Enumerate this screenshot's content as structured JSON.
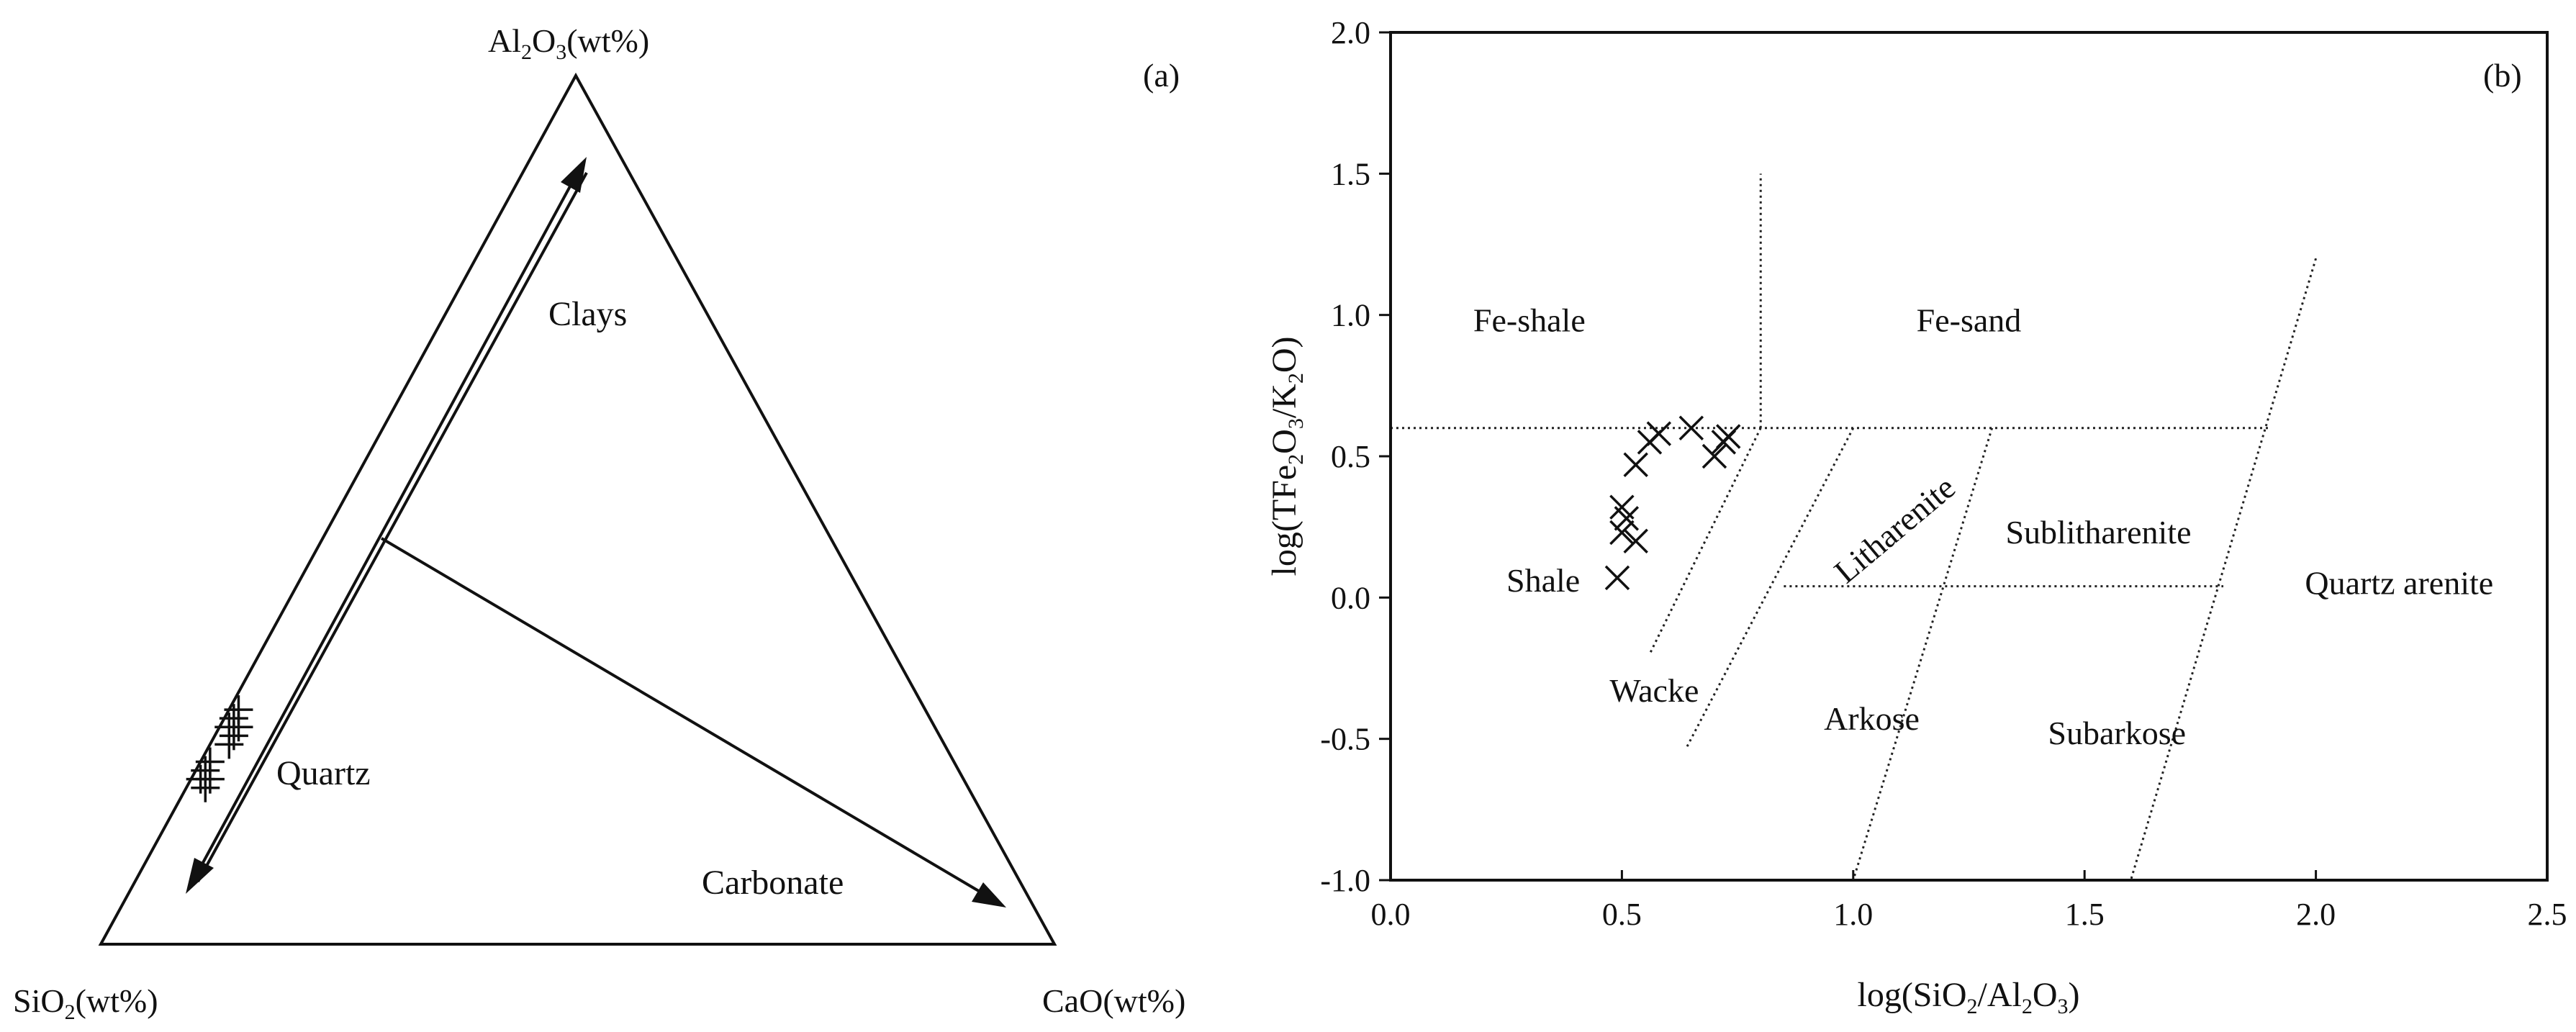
{
  "chart_data": [
    {
      "type": "ternary",
      "panel_label": "(a)",
      "vertices": {
        "top": {
          "main": "Al",
          "sub1": "2",
          "mid": "O",
          "sub2": "3",
          "tail": "(wt%)"
        },
        "left": {
          "main": "SiO",
          "sub1": "2",
          "tail": "(wt%)"
        },
        "right": {
          "main": "CaO(wt%)"
        }
      },
      "region_labels": [
        "Clays",
        "Quartz",
        "Carbonate"
      ],
      "marker": "plus",
      "points_wt_percent": [
        {
          "SiO2": 72,
          "Al2O3": 27,
          "CaO": 1
        },
        {
          "SiO2": 73,
          "Al2O3": 26,
          "CaO": 1
        },
        {
          "SiO2": 73,
          "Al2O3": 25,
          "CaO": 2
        },
        {
          "SiO2": 74,
          "Al2O3": 25,
          "CaO": 1
        },
        {
          "SiO2": 74,
          "Al2O3": 24,
          "CaO": 2
        },
        {
          "SiO2": 75,
          "Al2O3": 23,
          "CaO": 2
        },
        {
          "SiO2": 78,
          "Al2O3": 21,
          "CaO": 1
        },
        {
          "SiO2": 79,
          "Al2O3": 20,
          "CaO": 1
        },
        {
          "SiO2": 79,
          "Al2O3": 19,
          "CaO": 2
        },
        {
          "SiO2": 80,
          "Al2O3": 19,
          "CaO": 1
        },
        {
          "SiO2": 80,
          "Al2O3": 18,
          "CaO": 2
        }
      ]
    },
    {
      "type": "scatter",
      "panel_label": "(b)",
      "xlabel": {
        "pre": "log(SiO",
        "sub1": "2",
        "mid": "/Al",
        "sub2": "2",
        "mid2": "O",
        "sub3": "3",
        "post": ")"
      },
      "ylabel": {
        "pre": "log(TFe",
        "sub1": "2",
        "mid": "O",
        "sub2": "3",
        "mid2": "/K",
        "sub3": "2",
        "mid3": "O",
        "post": ")"
      },
      "xlim": [
        0,
        2.5
      ],
      "ylim": [
        -1,
        2
      ],
      "xticks": [
        "0.0",
        "0.5",
        "1.0",
        "1.5",
        "2.0",
        "2.5"
      ],
      "yticks": [
        "-1.0",
        "-0.5",
        "0.0",
        "0.5",
        "1.0",
        "1.5",
        "2.0"
      ],
      "marker": "cross",
      "points": [
        {
          "x": 0.49,
          "y": 0.07
        },
        {
          "x": 0.5,
          "y": 0.23
        },
        {
          "x": 0.51,
          "y": 0.28
        },
        {
          "x": 0.5,
          "y": 0.32
        },
        {
          "x": 0.53,
          "y": 0.2
        },
        {
          "x": 0.53,
          "y": 0.47
        },
        {
          "x": 0.56,
          "y": 0.55
        },
        {
          "x": 0.58,
          "y": 0.58
        },
        {
          "x": 0.65,
          "y": 0.6
        },
        {
          "x": 0.7,
          "y": 0.5
        },
        {
          "x": 0.72,
          "y": 0.55
        },
        {
          "x": 0.73,
          "y": 0.57
        }
      ],
      "field_boundaries": [
        {
          "from": [
            0,
            0.6
          ],
          "to": [
            1.9,
            0.6
          ]
        },
        {
          "from": [
            0.8,
            0.6
          ],
          "to": [
            0.8,
            1.5
          ]
        },
        {
          "from": [
            0.85,
            0.04
          ],
          "to": [
            1.8,
            0.04
          ]
        },
        {
          "from": [
            0.8,
            0.6
          ],
          "to": [
            0.56,
            -0.2
          ]
        },
        {
          "from": [
            1.0,
            0.6
          ],
          "to": [
            0.64,
            -0.53
          ]
        },
        {
          "from": [
            1.3,
            0.6
          ],
          "to": [
            1.0,
            -1.0
          ]
        },
        {
          "from": [
            2.0,
            1.2
          ],
          "to": [
            1.6,
            -1.0
          ]
        }
      ],
      "region_labels": [
        {
          "text": "Fe-shale",
          "x": 0.3,
          "y": 0.98
        },
        {
          "text": "Fe-sand",
          "x": 1.25,
          "y": 0.98
        },
        {
          "text": "Shale",
          "x": 0.33,
          "y": 0.06
        },
        {
          "text": "Wacke",
          "x": 0.57,
          "y": -0.33
        },
        {
          "text": "Litharenite",
          "x": 1.09,
          "y": 0.24,
          "rotation": -40
        },
        {
          "text": "Sublitharenite",
          "x": 1.53,
          "y": 0.23
        },
        {
          "text": "Quartz arenite",
          "x": 2.18,
          "y": 0.05
        },
        {
          "text": "Arkose",
          "x": 1.04,
          "y": -0.43
        },
        {
          "text": "Subarkose",
          "x": 1.57,
          "y": -0.48
        }
      ]
    }
  ]
}
